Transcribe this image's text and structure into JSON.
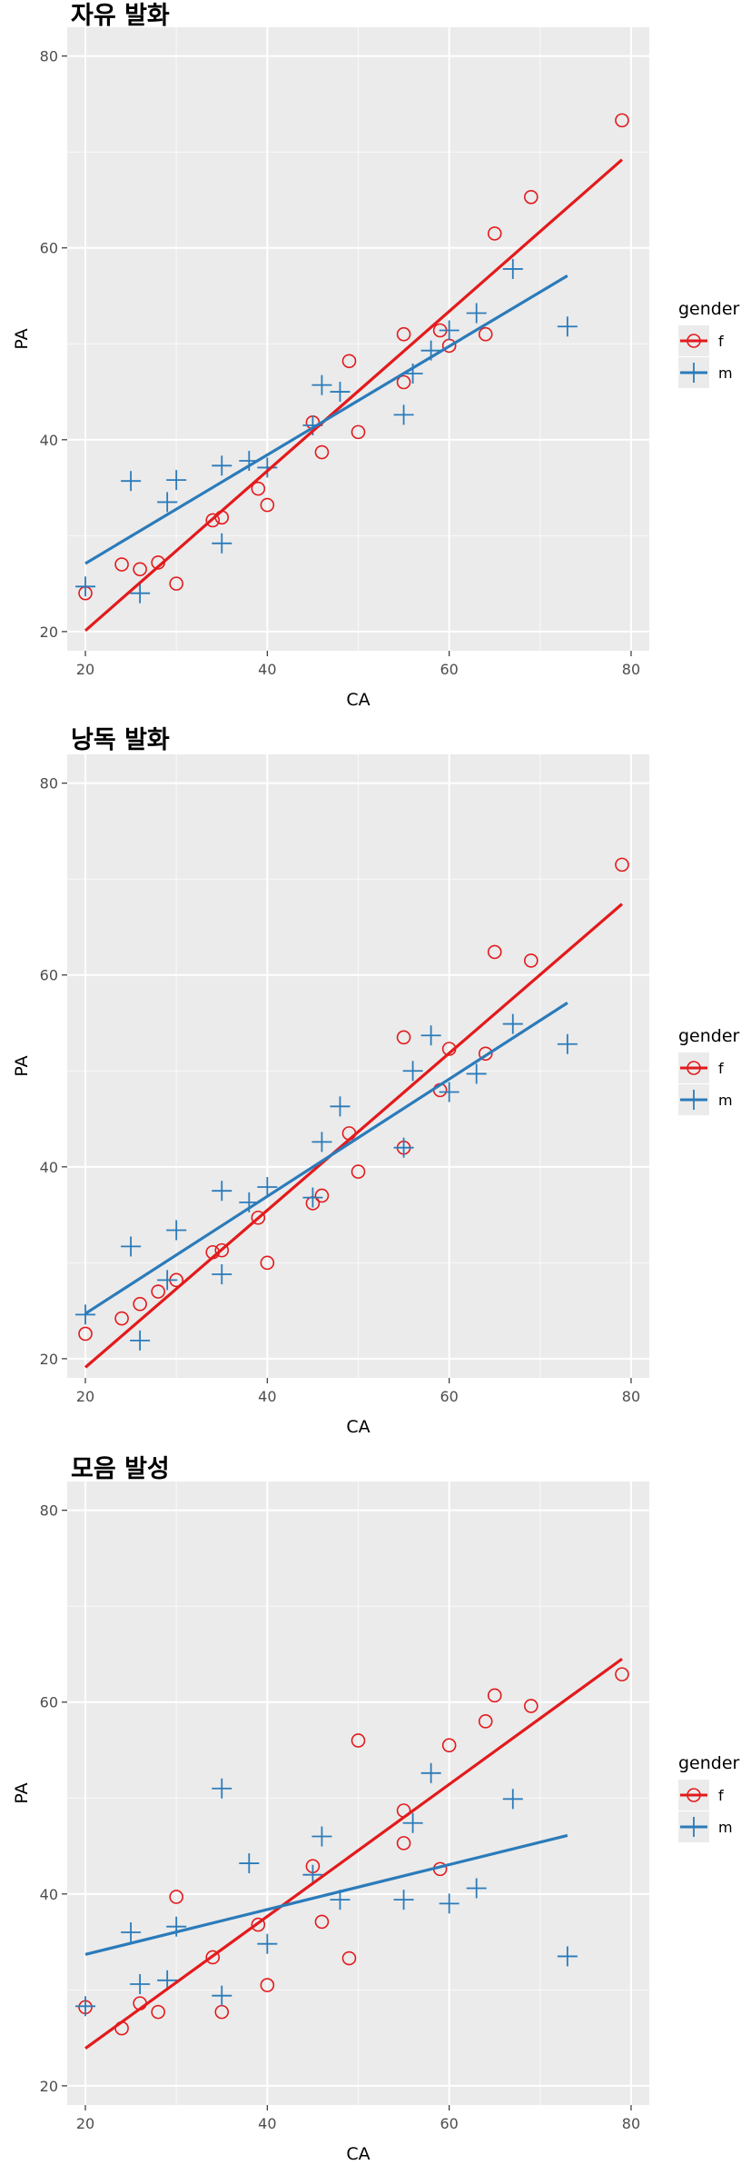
{
  "colors": {
    "f": "#e31a1c",
    "m": "#2b7bba",
    "panel_bg": "#ebebeb",
    "grid": "#ffffff"
  },
  "legend": {
    "title": "gender",
    "f_label": "f",
    "m_label": "m"
  },
  "chart_data": [
    {
      "type": "scatter",
      "title": "자유 발화",
      "xlabel": "CA",
      "ylabel": "PA",
      "xlim": [
        18,
        82
      ],
      "ylim": [
        18,
        83
      ],
      "x_ticks": [
        20,
        40,
        60,
        80
      ],
      "y_ticks": [
        20,
        40,
        60,
        80
      ],
      "grid": true,
      "legend_position": "right",
      "series": [
        {
          "name": "f",
          "marker": "circle",
          "points": [
            [
              20,
              24
            ],
            [
              24,
              27
            ],
            [
              26,
              26.5
            ],
            [
              28,
              27.2
            ],
            [
              30,
              25
            ],
            [
              34,
              31.6
            ],
            [
              35,
              31.9
            ],
            [
              39,
              34.9
            ],
            [
              40,
              33.2
            ],
            [
              45,
              41.8
            ],
            [
              46,
              38.7
            ],
            [
              49,
              48.2
            ],
            [
              50,
              40.8
            ],
            [
              55,
              46
            ],
            [
              55,
              51
            ],
            [
              59,
              51.4
            ],
            [
              60,
              49.8
            ],
            [
              64,
              51
            ],
            [
              65,
              61.5
            ],
            [
              69,
              65.3
            ],
            [
              79,
              73.3
            ]
          ],
          "fit": [
            [
              20,
              20.1
            ],
            [
              79,
              69.2
            ]
          ]
        },
        {
          "name": "m",
          "marker": "plus",
          "points": [
            [
              20,
              24.7
            ],
            [
              25,
              35.7
            ],
            [
              26,
              24
            ],
            [
              29,
              33.5
            ],
            [
              30,
              35.8
            ],
            [
              35,
              37.3
            ],
            [
              35,
              29.2
            ],
            [
              38,
              37.8
            ],
            [
              40,
              37.1
            ],
            [
              45,
              41.5
            ],
            [
              46,
              45.7
            ],
            [
              48,
              45
            ],
            [
              55,
              42.6
            ],
            [
              56,
              46.9
            ],
            [
              58,
              49.3
            ],
            [
              60,
              51.4
            ],
            [
              63,
              53.2
            ],
            [
              67,
              57.8
            ],
            [
              73,
              51.8
            ]
          ],
          "fit": [
            [
              20,
              27.1
            ],
            [
              73,
              57.1
            ]
          ]
        }
      ]
    },
    {
      "type": "scatter",
      "title": "낭독 발화",
      "xlabel": "CA",
      "ylabel": "PA",
      "xlim": [
        18,
        82
      ],
      "ylim": [
        18,
        83
      ],
      "x_ticks": [
        20,
        40,
        60,
        80
      ],
      "y_ticks": [
        20,
        40,
        60,
        80
      ],
      "grid": true,
      "legend_position": "right",
      "series": [
        {
          "name": "f",
          "marker": "circle",
          "points": [
            [
              20,
              22.6
            ],
            [
              24,
              24.2
            ],
            [
              26,
              25.7
            ],
            [
              28,
              27
            ],
            [
              30,
              28.2
            ],
            [
              34,
              31.1
            ],
            [
              35,
              31.3
            ],
            [
              39,
              34.7
            ],
            [
              40,
              30
            ],
            [
              45,
              36.2
            ],
            [
              46,
              37
            ],
            [
              49,
              43.5
            ],
            [
              50,
              39.5
            ],
            [
              55,
              42
            ],
            [
              55,
              53.5
            ],
            [
              59,
              48
            ],
            [
              60,
              52.3
            ],
            [
              64,
              51.8
            ],
            [
              65,
              62.4
            ],
            [
              69,
              61.5
            ],
            [
              79,
              71.5
            ]
          ],
          "fit": [
            [
              20,
              19.1
            ],
            [
              79,
              67.4
            ]
          ]
        },
        {
          "name": "m",
          "marker": "plus",
          "points": [
            [
              20,
              24.6
            ],
            [
              25,
              31.7
            ],
            [
              26,
              21.9
            ],
            [
              29,
              28.2
            ],
            [
              30,
              33.4
            ],
            [
              35,
              37.5
            ],
            [
              35,
              28.8
            ],
            [
              38,
              36.3
            ],
            [
              40,
              37.9
            ],
            [
              45,
              36.8
            ],
            [
              46,
              42.6
            ],
            [
              48,
              46.3
            ],
            [
              55,
              42
            ],
            [
              56,
              50
            ],
            [
              58,
              53.7
            ],
            [
              60,
              47.8
            ],
            [
              63,
              49.7
            ],
            [
              67,
              54.9
            ],
            [
              73,
              52.8
            ]
          ],
          "fit": [
            [
              20,
              24.7
            ],
            [
              73,
              57.1
            ]
          ]
        }
      ]
    },
    {
      "type": "scatter",
      "title": "모음 발성",
      "xlabel": "CA",
      "ylabel": "PA",
      "xlim": [
        18,
        82
      ],
      "ylim": [
        18,
        83
      ],
      "x_ticks": [
        20,
        40,
        60,
        80
      ],
      "y_ticks": [
        20,
        40,
        60,
        80
      ],
      "grid": true,
      "legend_position": "right",
      "series": [
        {
          "name": "f",
          "marker": "circle",
          "points": [
            [
              20,
              28.2
            ],
            [
              24,
              26
            ],
            [
              26,
              28.6
            ],
            [
              28,
              27.7
            ],
            [
              30,
              39.7
            ],
            [
              34,
              33.4
            ],
            [
              35,
              27.7
            ],
            [
              39,
              36.8
            ],
            [
              40,
              30.5
            ],
            [
              45,
              42.9
            ],
            [
              46,
              37.1
            ],
            [
              49,
              33.3
            ],
            [
              50,
              56
            ],
            [
              55,
              45.3
            ],
            [
              55,
              48.7
            ],
            [
              59,
              42.6
            ],
            [
              60,
              55.5
            ],
            [
              64,
              58
            ],
            [
              65,
              60.7
            ],
            [
              69,
              59.6
            ],
            [
              79,
              62.9
            ]
          ],
          "fit": [
            [
              20,
              23.9
            ],
            [
              79,
              64.5
            ]
          ]
        },
        {
          "name": "m",
          "marker": "plus",
          "points": [
            [
              20,
              28.3
            ],
            [
              25,
              36
            ],
            [
              26,
              30.6
            ],
            [
              29,
              31
            ],
            [
              30,
              36.6
            ],
            [
              35,
              51
            ],
            [
              35,
              29.4
            ],
            [
              38,
              43.2
            ],
            [
              40,
              34.8
            ],
            [
              45,
              42
            ],
            [
              46,
              46
            ],
            [
              48,
              39.4
            ],
            [
              55,
              39.4
            ],
            [
              56,
              47.4
            ],
            [
              58,
              52.6
            ],
            [
              60,
              39
            ],
            [
              63,
              40.6
            ],
            [
              67,
              49.9
            ],
            [
              73,
              33.5
            ]
          ],
          "fit": [
            [
              20,
              33.7
            ],
            [
              73,
              46.1
            ]
          ]
        }
      ]
    }
  ]
}
